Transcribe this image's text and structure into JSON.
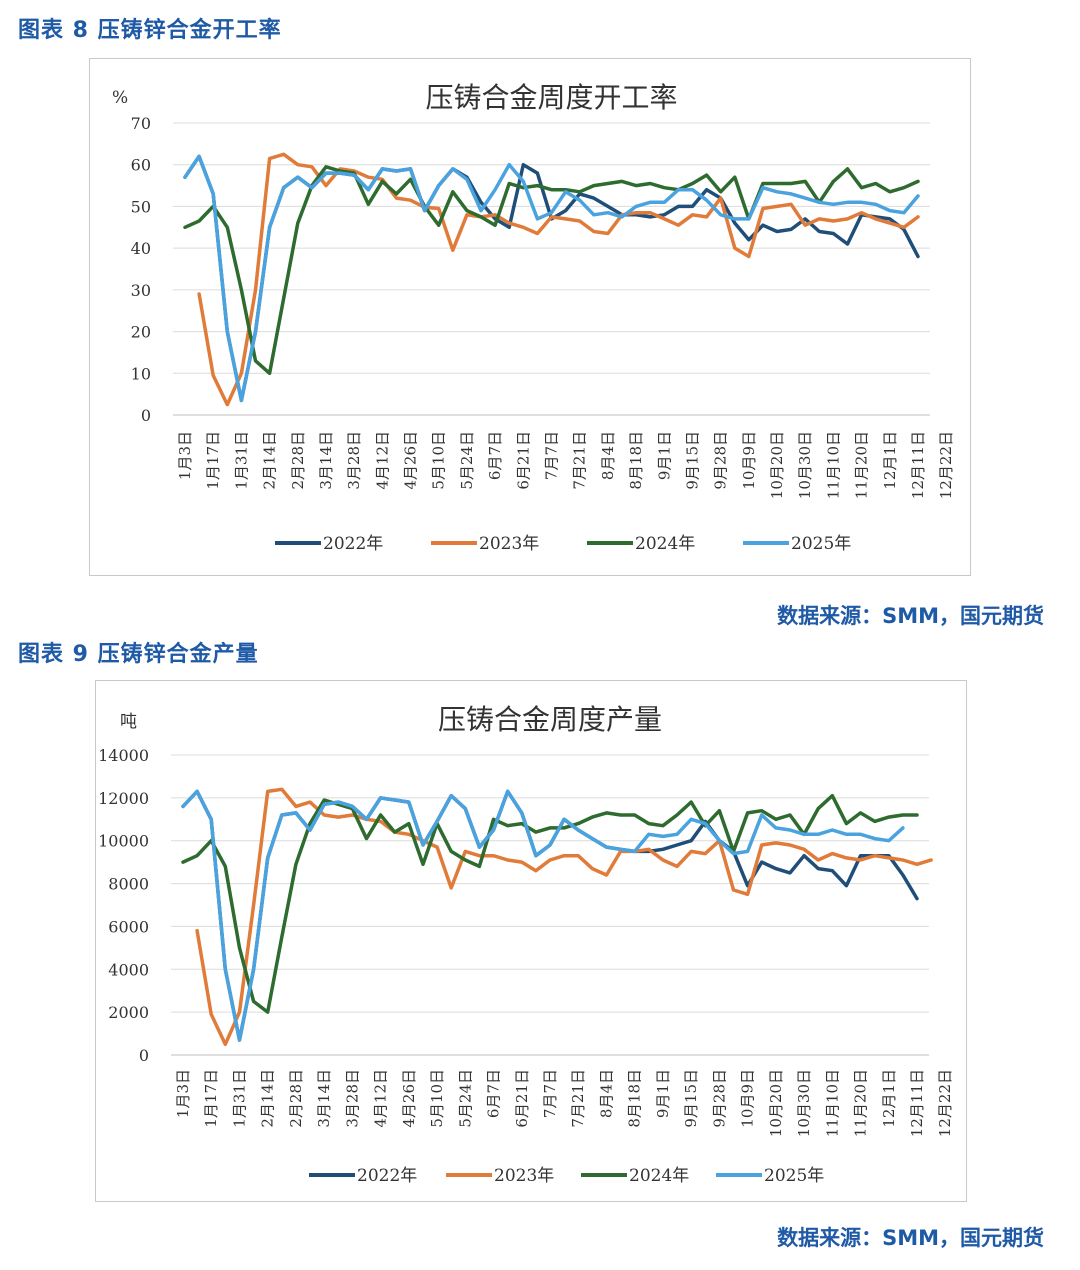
{
  "figure8": {
    "label": "图表 8 压铸锌合金开工率",
    "source": "数据来源：SMM，国元期货"
  },
  "figure9": {
    "label": "图表 9 压铸锌合金产量",
    "source": "数据来源：SMM，国元期货"
  },
  "colors": {
    "2022": "#1f4e79",
    "2023": "#e07b39",
    "2024": "#2e6b2e",
    "2025": "#4aa3df"
  },
  "chart_data": [
    {
      "type": "line",
      "title": "压铸合金周度开工率",
      "ylabel": "%",
      "ylim": [
        0,
        70
      ],
      "yticks": [
        0,
        10,
        20,
        30,
        40,
        50,
        60,
        70
      ],
      "xtick_labels": [
        "1月3日",
        "1月17日",
        "1月31日",
        "2月14日",
        "2月28日",
        "3月14日",
        "3月28日",
        "4月12日",
        "4月26日",
        "5月10日",
        "5月24日",
        "6月7日",
        "6月21日",
        "7月7日",
        "7月21日",
        "8月4日",
        "8月18日",
        "9月1日",
        "9月15日",
        "9月28日",
        "10月9日",
        "10月20日",
        "10月30日",
        "11月10日",
        "11月20日",
        "12月1日",
        "12月11日",
        "12月22日"
      ],
      "legend_position": "bottom",
      "series": [
        {
          "name": "2022年",
          "start": 0,
          "values": [
            57,
            62,
            53,
            20,
            3.5,
            20,
            45,
            54.5,
            57,
            54.5,
            58,
            58,
            57.5,
            54,
            59,
            58.5,
            59,
            49,
            55,
            59,
            57,
            51,
            47,
            45,
            60,
            58,
            47,
            49,
            53,
            52,
            50,
            48,
            48,
            47.5,
            48,
            50,
            50,
            54,
            52,
            46,
            42,
            45.5,
            44,
            44.5,
            47,
            44,
            43.5,
            41,
            48,
            47.5,
            47,
            44.5,
            38
          ]
        },
        {
          "name": "2023年",
          "start": 1,
          "values": [
            29,
            9.5,
            2.5,
            10,
            30,
            61.5,
            62.5,
            60,
            59.5,
            55,
            59,
            58.5,
            57,
            56.5,
            52,
            51.5,
            49.8,
            49.5,
            39.5,
            48,
            47.5,
            48,
            46,
            45,
            43.5,
            47.5,
            47,
            46.5,
            44,
            43.5,
            48,
            48.5,
            48.5,
            47,
            45.5,
            48,
            47.5,
            52,
            40,
            38,
            49.5,
            50,
            50.5,
            45.5,
            47,
            46.5,
            47,
            48.5,
            47,
            46,
            45,
            47.5
          ]
        },
        {
          "name": "2024年",
          "start": 0,
          "values": [
            45,
            46.5,
            50,
            45,
            30,
            13,
            10,
            28,
            46,
            55,
            59.5,
            58.5,
            58,
            50.5,
            56,
            53,
            56.5,
            50,
            45.5,
            53.5,
            49,
            47.5,
            45.5,
            55.5,
            54.5,
            55,
            54,
            54,
            53.5,
            55,
            55.5,
            56,
            55,
            55.5,
            54.5,
            54,
            55.5,
            57.5,
            53.5,
            57,
            47,
            55.5,
            55.5,
            55.5,
            56,
            51,
            56,
            59,
            54.5,
            55.5,
            53.5,
            54.5,
            56
          ]
        },
        {
          "name": "2025年",
          "start": 0,
          "values": [
            57,
            62,
            53,
            20,
            3.5,
            20,
            45,
            54.5,
            57,
            54.5,
            58,
            58,
            57.5,
            54,
            59,
            58.5,
            59,
            49,
            55,
            59,
            56.5,
            49,
            54,
            60,
            56,
            47,
            48.5,
            53.5,
            51.5,
            48,
            48.5,
            47.5,
            50,
            51,
            51,
            54,
            54,
            51.5,
            48,
            47,
            47,
            54.5,
            53.5,
            53,
            52,
            51,
            50.5,
            51,
            51,
            50.5,
            49,
            48.5,
            52.5
          ]
        }
      ]
    },
    {
      "type": "line",
      "title": "压铸合金周度产量",
      "ylabel": "吨",
      "ylim": [
        0,
        14000
      ],
      "yticks": [
        0,
        2000,
        4000,
        6000,
        8000,
        10000,
        12000,
        14000
      ],
      "xtick_labels": [
        "1月3日",
        "1月17日",
        "1月31日",
        "2月14日",
        "2月28日",
        "3月14日",
        "3月28日",
        "4月12日",
        "4月26日",
        "5月10日",
        "5月24日",
        "6月7日",
        "6月21日",
        "7月7日",
        "7月21日",
        "8月4日",
        "8月18日",
        "9月1日",
        "9月15日",
        "9月28日",
        "10月9日",
        "10月20日",
        "10月30日",
        "11月10日",
        "11月20日",
        "12月1日",
        "12月11日",
        "12月22日"
      ],
      "legend_position": "bottom",
      "series": [
        {
          "name": "2022年",
          "start": 0,
          "values": [
            11600,
            12300,
            11000,
            4000,
            700,
            4000,
            9200,
            11200,
            11300,
            10500,
            11700,
            11800,
            11600,
            11000,
            12000,
            11900,
            11800,
            9800,
            10900,
            12100,
            11500,
            9700,
            10500,
            12300,
            11300,
            9300,
            9800,
            11000,
            10500,
            10100,
            9700,
            9600,
            9500,
            9500,
            9600,
            9800,
            10000,
            10900,
            10000,
            9500,
            7900,
            9000,
            8700,
            8500,
            9300,
            8700,
            8600,
            7900,
            9300,
            9300,
            9300,
            8400,
            7300
          ]
        },
        {
          "name": "2023年",
          "start": 1,
          "values": [
            5800,
            1900,
            500,
            2000,
            7000,
            12300,
            12400,
            11600,
            11800,
            11200,
            11100,
            11200,
            11000,
            10900,
            10400,
            10300,
            10000,
            9700,
            7800,
            9500,
            9300,
            9300,
            9100,
            9000,
            8600,
            9100,
            9300,
            9300,
            8700,
            8400,
            9500,
            9500,
            9600,
            9100,
            8800,
            9500,
            9400,
            10000,
            7700,
            7500,
            9800,
            9900,
            9800,
            9600,
            9100,
            9400,
            9200,
            9100,
            9300,
            9200,
            9100,
            8900,
            9100
          ]
        },
        {
          "name": "2024年",
          "start": 0,
          "values": [
            9000,
            9300,
            10000,
            8800,
            5000,
            2500,
            2000,
            5500,
            8900,
            10800,
            11900,
            11700,
            11500,
            10100,
            11200,
            10400,
            10800,
            8900,
            10800,
            9500,
            9100,
            8800,
            11000,
            10700,
            10800,
            10400,
            10600,
            10600,
            10800,
            11100,
            11300,
            11200,
            11200,
            10800,
            10700,
            11200,
            11800,
            10700,
            11400,
            9500,
            11300,
            11400,
            11000,
            11200,
            10300,
            11500,
            12100,
            10800,
            11300,
            10900,
            11100,
            11200,
            11200
          ]
        },
        {
          "name": "2025年",
          "start": 0,
          "values": [
            11600,
            12300,
            11000,
            4000,
            700,
            4000,
            9200,
            11200,
            11300,
            10500,
            11700,
            11800,
            11600,
            11000,
            12000,
            11900,
            11800,
            9800,
            10900,
            12100,
            11500,
            9700,
            10500,
            12300,
            11300,
            9300,
            9800,
            11000,
            10500,
            10100,
            9700,
            9600,
            9500,
            10300,
            10200,
            10300,
            11000,
            10800,
            10000,
            9400,
            9500,
            11200,
            10600,
            10500,
            10300,
            10300,
            10500,
            10300,
            10300,
            10100,
            10000,
            10600
          ]
        }
      ]
    }
  ]
}
